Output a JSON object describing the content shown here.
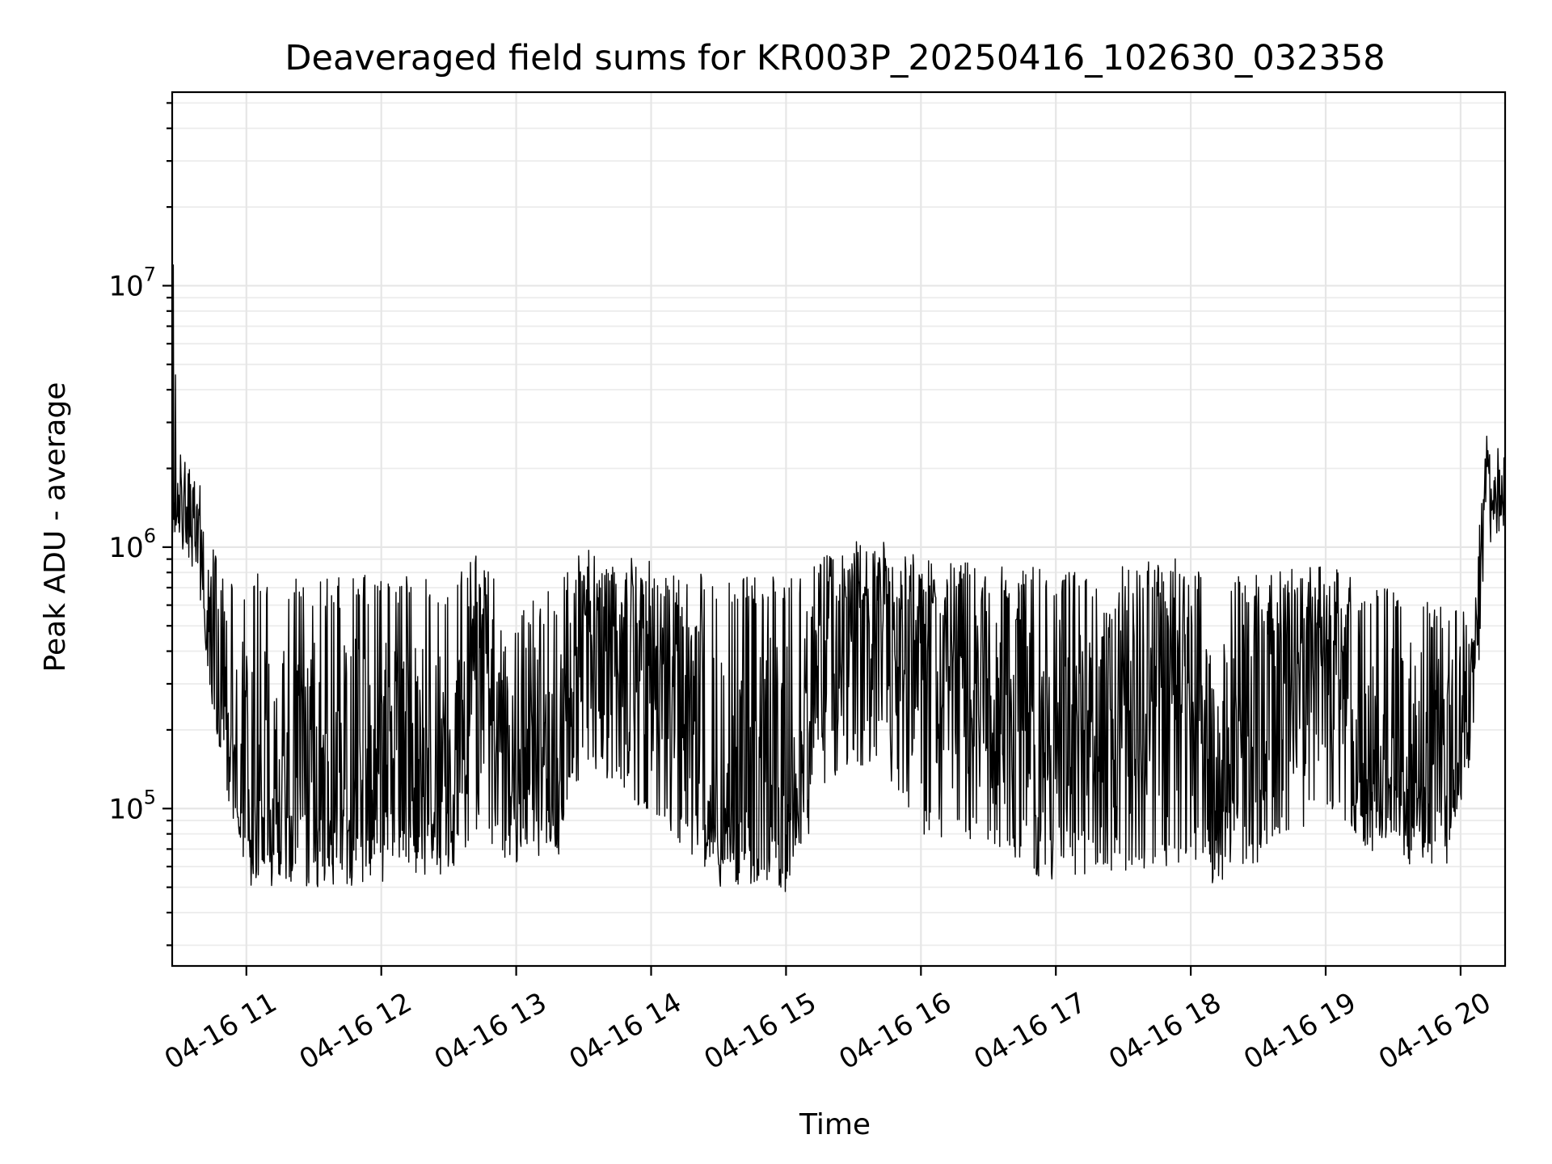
{
  "chart_data": {
    "type": "line",
    "title": "Deaveraged field sums for KR003P_20250416_102630_032358",
    "xlabel": "Time",
    "ylabel": "Peak ADU - average",
    "yscale": "log",
    "grid": true,
    "xlim_hours": [
      10.45,
      20.33
    ],
    "ylim": [
      25000,
      55000000
    ],
    "x_ticks": [
      {
        "hour": 11,
        "label": "04-16 11"
      },
      {
        "hour": 12,
        "label": "04-16 12"
      },
      {
        "hour": 13,
        "label": "04-16 13"
      },
      {
        "hour": 14,
        "label": "04-16 14"
      },
      {
        "hour": 15,
        "label": "04-16 15"
      },
      {
        "hour": 16,
        "label": "04-16 16"
      },
      {
        "hour": 17,
        "label": "04-16 17"
      },
      {
        "hour": 18,
        "label": "04-16 18"
      },
      {
        "hour": 19,
        "label": "04-16 19"
      },
      {
        "hour": 20,
        "label": "04-16 20"
      }
    ],
    "y_ticks": [
      {
        "value": 100000,
        "base": "10",
        "exp": "5"
      },
      {
        "value": 1000000,
        "base": "10",
        "exp": "6"
      },
      {
        "value": 10000000,
        "base": "10",
        "exp": "7"
      }
    ],
    "series": [
      {
        "name": "deaveraged field sum",
        "color": "#000000",
        "envelope": [
          {
            "hour": 10.45,
            "low": 1000000,
            "high": 12000000,
            "center": 1500000
          },
          {
            "hour": 10.5,
            "low": 1000000,
            "high": 2500000,
            "center": 1500000
          },
          {
            "hour": 10.62,
            "low": 800000,
            "high": 2200000,
            "center": 1300000
          },
          {
            "hour": 10.7,
            "low": 300000,
            "high": 1400000,
            "center": 500000
          },
          {
            "hour": 10.8,
            "low": 150000,
            "high": 800000,
            "center": 250000
          },
          {
            "hour": 11.0,
            "low": 50000,
            "high": 800000,
            "center": 120000
          },
          {
            "hour": 11.5,
            "low": 50000,
            "high": 750000,
            "center": 95000
          },
          {
            "hour": 12.0,
            "low": 50000,
            "high": 800000,
            "center": 100000
          },
          {
            "hour": 12.5,
            "low": 55000,
            "high": 750000,
            "center": 110000
          },
          {
            "hour": 12.7,
            "low": 80000,
            "high": 950000,
            "center": 400000
          },
          {
            "hour": 13.0,
            "low": 60000,
            "high": 600000,
            "center": 120000
          },
          {
            "hour": 13.3,
            "low": 60000,
            "high": 700000,
            "center": 110000
          },
          {
            "hour": 13.5,
            "low": 150000,
            "high": 1000000,
            "center": 550000
          },
          {
            "hour": 14.0,
            "low": 90000,
            "high": 900000,
            "center": 450000
          },
          {
            "hour": 14.5,
            "low": 50000,
            "high": 800000,
            "center": 90000
          },
          {
            "hour": 15.0,
            "low": 45000,
            "high": 800000,
            "center": 85000
          },
          {
            "hour": 15.3,
            "low": 120000,
            "high": 1000000,
            "center": 450000
          },
          {
            "hour": 15.7,
            "low": 150000,
            "high": 1100000,
            "center": 600000
          },
          {
            "hour": 16.0,
            "low": 80000,
            "high": 950000,
            "center": 400000
          },
          {
            "hour": 16.5,
            "low": 70000,
            "high": 850000,
            "center": 350000
          },
          {
            "hour": 17.0,
            "low": 50000,
            "high": 850000,
            "center": 150000
          },
          {
            "hour": 17.5,
            "low": 55000,
            "high": 850000,
            "center": 200000
          },
          {
            "hour": 17.9,
            "low": 60000,
            "high": 950000,
            "center": 400000
          },
          {
            "hour": 18.2,
            "low": 50000,
            "high": 750000,
            "center": 110000
          },
          {
            "hour": 18.5,
            "low": 60000,
            "high": 800000,
            "center": 450000
          },
          {
            "hour": 19.0,
            "low": 100000,
            "high": 900000,
            "center": 450000
          },
          {
            "hour": 19.3,
            "low": 70000,
            "high": 700000,
            "center": 150000
          },
          {
            "hour": 19.6,
            "low": 60000,
            "high": 700000,
            "center": 120000
          },
          {
            "hour": 19.9,
            "low": 60000,
            "high": 600000,
            "center": 150000
          },
          {
            "hour": 20.1,
            "low": 150000,
            "high": 550000,
            "center": 280000
          },
          {
            "hour": 20.18,
            "low": 800000,
            "high": 2800000,
            "center": 1500000
          },
          {
            "hour": 20.33,
            "low": 1100000,
            "high": 2900000,
            "center": 1600000
          }
        ]
      }
    ]
  }
}
